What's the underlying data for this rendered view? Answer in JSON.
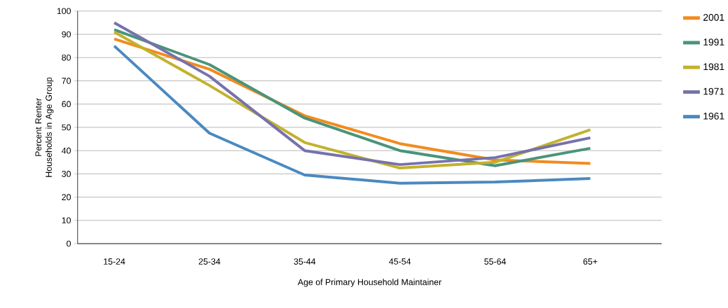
{
  "chart_data": {
    "type": "line",
    "xlabel": "Age of Primary Household Maintainer",
    "ylabel": "Percent Renter Households in Age Group",
    "categories": [
      "15-24",
      "25-34",
      "35-44",
      "45-54",
      "55-64",
      "65+"
    ],
    "series": [
      {
        "name": "2001",
        "color": "#f28b1e",
        "values": [
          88,
          75,
          55,
          43,
          36,
          34.5
        ]
      },
      {
        "name": "1991",
        "color": "#4a9479",
        "values": [
          92,
          77,
          54,
          40,
          33.5,
          41
        ]
      },
      {
        "name": "1981",
        "color": "#c2b22c",
        "values": [
          91,
          68,
          43.5,
          32.5,
          35,
          49
        ]
      },
      {
        "name": "1971",
        "color": "#7672ad",
        "values": [
          95,
          72,
          40,
          34,
          37,
          45.5
        ]
      },
      {
        "name": "1961",
        "color": "#4a89c0",
        "values": [
          85,
          47.5,
          29.5,
          26,
          26.5,
          28
        ]
      }
    ],
    "ylim": [
      0,
      100
    ],
    "yticks": [
      0,
      10,
      20,
      30,
      40,
      50,
      60,
      70,
      80,
      90,
      100
    ],
    "grid": "y",
    "legend": "right",
    "marker": "none",
    "line_style": "solid"
  }
}
